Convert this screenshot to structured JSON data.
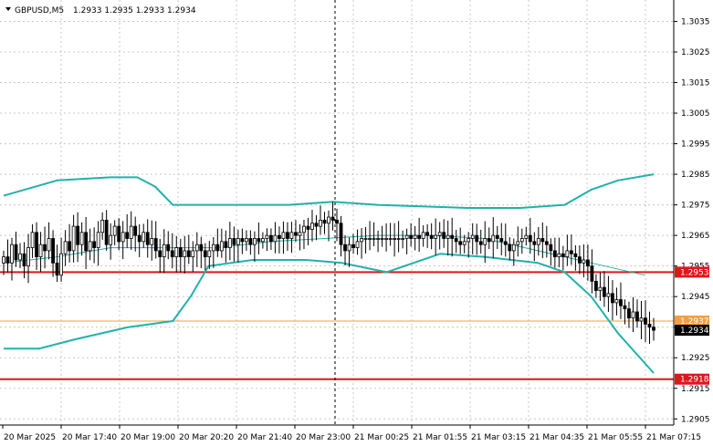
{
  "header": {
    "symbol": "GBPUSD,M5",
    "ohlc": "1.2933 1.2935 1.2933 1.2934"
  },
  "colors": {
    "bollinger": "#20b2aa",
    "support_line": "#e0161b",
    "level_line": "#f0a040",
    "candle": "#000000",
    "grid": "#c8c8c8",
    "current_price_bg": "#000000"
  },
  "chart_data": {
    "type": "candlestick",
    "symbol": "GBPUSD",
    "timeframe": "M5",
    "ylim": [
      1.2903,
      1.3042
    ],
    "y_ticks": [
      "1.3035",
      "1.3025",
      "1.3015",
      "1.3005",
      "1.2995",
      "1.2985",
      "1.2975",
      "1.2965",
      "1.2955",
      "1.2945",
      "1.2935",
      "1.2925",
      "1.2915",
      "1.2905"
    ],
    "x_ticks": [
      "20 Mar 2025",
      "20 Mar 17:40",
      "20 Mar 19:00",
      "20 Mar 20:20",
      "20 Mar 21:40",
      "20 Mar 23:00",
      "21 Mar 00:25",
      "21 Mar 01:55",
      "21 Mar 03:15",
      "21 Mar 04:35",
      "21 Mar 05:55",
      "21 Mar 07:15"
    ],
    "horizontal_levels": [
      {
        "label": "1.2953",
        "value": 1.2953,
        "color": "#e0161b"
      },
      {
        "label": "1.2937",
        "value": 1.2937,
        "color": "#f0a040"
      },
      {
        "label": "1.2918",
        "value": 1.2918,
        "color": "#e0161b"
      }
    ],
    "current_price": "1.2934",
    "closes": [
      1.2958,
      1.2956,
      1.2962,
      1.2957,
      1.2959,
      1.2955,
      1.2961,
      1.2966,
      1.2958,
      1.2962,
      1.296,
      1.2964,
      1.2956,
      1.2952,
      1.2959,
      1.2963,
      1.296,
      1.2968,
      1.2962,
      1.2966,
      1.296,
      1.2963,
      1.2961,
      1.2966,
      1.297,
      1.2962,
      1.2965,
      1.2968,
      1.2963,
      1.2966,
      1.2964,
      1.2968,
      1.2965,
      1.2963,
      1.2966,
      1.2962,
      1.2964,
      1.296,
      1.2958,
      1.2962,
      1.296,
      1.2958,
      1.2961,
      1.2958,
      1.296,
      1.2958,
      1.296,
      1.2962,
      1.296,
      1.2958,
      1.296,
      1.2962,
      1.296,
      1.2963,
      1.2961,
      1.2964,
      1.2962,
      1.2964,
      1.2963,
      1.2964,
      1.2962,
      1.2964,
      1.2963,
      1.2964,
      1.2965,
      1.2963,
      1.2965,
      1.2964,
      1.2966,
      1.2964,
      1.2966,
      1.2965,
      1.2966,
      1.2968,
      1.2967,
      1.2969,
      1.2968,
      1.297,
      1.2969,
      1.2971,
      1.297,
      1.2969,
      1.2962,
      1.296,
      1.2962,
      1.2961,
      1.2963,
      1.2964,
      1.2964,
      1.2964,
      1.2964,
      1.2964,
      1.2964,
      1.2964,
      1.2964,
      1.2964,
      1.2964,
      1.2964,
      1.2965,
      1.2964,
      1.2965,
      1.2964,
      1.2966,
      1.2965,
      1.2964,
      1.2965,
      1.2966,
      1.2964,
      1.2965,
      1.2964,
      1.2963,
      1.2962,
      1.2963,
      1.2964,
      1.2965,
      1.2963,
      1.2962,
      1.2964,
      1.2963,
      1.2965,
      1.2964,
      1.2963,
      1.2962,
      1.296,
      1.2962,
      1.2963,
      1.2964,
      1.2965,
      1.2963,
      1.2962,
      1.2964,
      1.2963,
      1.2962,
      1.296,
      1.2958,
      1.2959,
      1.2958,
      1.296,
      1.2959,
      1.2958,
      1.2956,
      1.2957,
      1.2955,
      1.295,
      1.2947,
      1.2948,
      1.2945,
      1.2946,
      1.2943,
      1.2944,
      1.2942,
      1.2941,
      1.2938,
      1.294,
      1.2937,
      1.2938,
      1.2936,
      1.2935,
      1.2934
    ],
    "bollinger_upper": [
      [
        0,
        1.2978
      ],
      [
        30,
        1.2983
      ],
      [
        60,
        1.2984
      ],
      [
        75,
        1.2984
      ],
      [
        85,
        1.2981
      ],
      [
        95,
        1.2975
      ],
      [
        120,
        1.2975
      ],
      [
        160,
        1.2975
      ],
      [
        185,
        1.2976
      ],
      [
        210,
        1.2975
      ],
      [
        260,
        1.2974
      ],
      [
        290,
        1.2974
      ],
      [
        315,
        1.2975
      ],
      [
        330,
        1.298
      ],
      [
        345,
        1.2983
      ],
      [
        365,
        1.2985
      ]
    ],
    "bollinger_middle": [
      [
        0,
        1.2956
      ],
      [
        30,
        1.2958
      ],
      [
        60,
        1.2961
      ],
      [
        90,
        1.2961
      ],
      [
        120,
        1.2961
      ],
      [
        150,
        1.2963
      ],
      [
        180,
        1.2964
      ],
      [
        210,
        1.2965
      ],
      [
        240,
        1.2965
      ],
      [
        270,
        1.2964
      ],
      [
        300,
        1.296
      ],
      [
        330,
        1.2956
      ],
      [
        360,
        1.2952
      ]
    ],
    "bollinger_lower": [
      [
        0,
        1.2928
      ],
      [
        20,
        1.2928
      ],
      [
        40,
        1.2931
      ],
      [
        70,
        1.2935
      ],
      [
        95,
        1.2937
      ],
      [
        105,
        1.2945
      ],
      [
        115,
        1.2955
      ],
      [
        140,
        1.2957
      ],
      [
        170,
        1.2957
      ],
      [
        190,
        1.2956
      ],
      [
        215,
        1.2953
      ],
      [
        245,
        1.2959
      ],
      [
        270,
        1.2958
      ],
      [
        300,
        1.2956
      ],
      [
        315,
        1.2953
      ],
      [
        330,
        1.2945
      ],
      [
        345,
        1.2933
      ],
      [
        365,
        1.292
      ]
    ]
  }
}
